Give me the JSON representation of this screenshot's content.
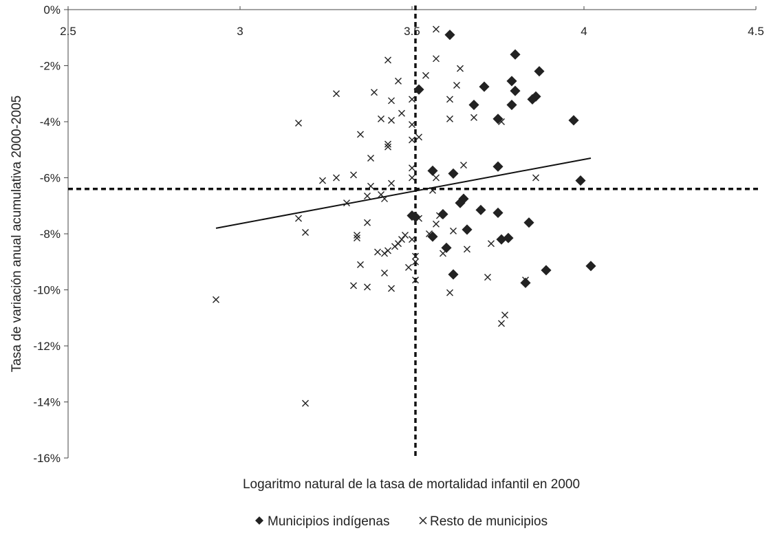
{
  "chart_data": {
    "type": "scatter",
    "title": "",
    "xlabel": "Logaritmo natural de la tasa de mortalidad infantil en 2000",
    "ylabel": "Tasa de variación anual acumulativa 2000-2005",
    "xlim": [
      2.5,
      4.5
    ],
    "ylim": [
      -16,
      0
    ],
    "x_ticks": [
      "2.5",
      "3",
      "3.5",
      "4",
      "4.5"
    ],
    "y_ticks": [
      "0%",
      "-2%",
      "-4%",
      "-6%",
      "-8%",
      "-10%",
      "-12%",
      "-14%",
      "-16%"
    ],
    "x_axis_at_top": true,
    "grid": false,
    "legend_position": "bottom",
    "reference_lines": {
      "x": 3.51,
      "y": -6.4,
      "style": "dashed"
    },
    "trendline": {
      "x": [
        2.93,
        4.02
      ],
      "y": [
        -7.8,
        -5.3
      ]
    },
    "series": [
      {
        "name": "Municipios indígenas",
        "marker": "diamond",
        "color": "#222222",
        "points": [
          [
            3.61,
            -0.9
          ],
          [
            3.8,
            -1.6
          ],
          [
            3.87,
            -2.2
          ],
          [
            3.79,
            -2.55
          ],
          [
            3.8,
            -2.9
          ],
          [
            3.71,
            -2.75
          ],
          [
            3.52,
            -2.85
          ],
          [
            3.86,
            -3.1
          ],
          [
            3.85,
            -3.2
          ],
          [
            3.68,
            -3.4
          ],
          [
            3.79,
            -3.4
          ],
          [
            3.75,
            -3.9
          ],
          [
            3.97,
            -3.95
          ],
          [
            3.56,
            -5.75
          ],
          [
            3.62,
            -5.85
          ],
          [
            3.75,
            -5.6
          ],
          [
            3.99,
            -6.1
          ],
          [
            3.65,
            -6.75
          ],
          [
            3.64,
            -6.9
          ],
          [
            3.7,
            -7.15
          ],
          [
            3.75,
            -7.25
          ],
          [
            3.59,
            -7.3
          ],
          [
            3.5,
            -7.35
          ],
          [
            3.51,
            -7.4
          ],
          [
            3.84,
            -7.6
          ],
          [
            3.66,
            -7.85
          ],
          [
            3.76,
            -8.2
          ],
          [
            3.56,
            -8.1
          ],
          [
            3.78,
            -8.15
          ],
          [
            3.6,
            -8.5
          ],
          [
            4.02,
            -9.15
          ],
          [
            3.89,
            -9.3
          ],
          [
            3.62,
            -9.45
          ],
          [
            3.83,
            -9.75
          ]
        ]
      },
      {
        "name": "Resto de municipios",
        "marker": "cross",
        "color": "#222222",
        "points": [
          [
            3.57,
            -0.7
          ],
          [
            3.57,
            -1.75
          ],
          [
            3.43,
            -1.8
          ],
          [
            3.54,
            -2.35
          ],
          [
            3.64,
            -2.1
          ],
          [
            3.63,
            -2.7
          ],
          [
            3.46,
            -2.55
          ],
          [
            3.28,
            -3.0
          ],
          [
            3.39,
            -2.95
          ],
          [
            3.5,
            -3.2
          ],
          [
            3.61,
            -3.2
          ],
          [
            3.44,
            -3.25
          ],
          [
            3.17,
            -4.05
          ],
          [
            3.47,
            -3.7
          ],
          [
            3.44,
            -3.95
          ],
          [
            3.41,
            -3.9
          ],
          [
            3.5,
            -4.1
          ],
          [
            3.61,
            -3.9
          ],
          [
            3.68,
            -3.85
          ],
          [
            3.76,
            -4.0
          ],
          [
            3.35,
            -4.45
          ],
          [
            3.52,
            -4.55
          ],
          [
            3.5,
            -4.65
          ],
          [
            3.43,
            -4.8
          ],
          [
            3.43,
            -4.9
          ],
          [
            3.38,
            -5.3
          ],
          [
            3.65,
            -5.55
          ],
          [
            3.5,
            -5.65
          ],
          [
            3.24,
            -6.1
          ],
          [
            3.28,
            -6.0
          ],
          [
            3.33,
            -5.9
          ],
          [
            3.44,
            -6.2
          ],
          [
            3.5,
            -6.0
          ],
          [
            3.57,
            -6.0
          ],
          [
            3.86,
            -6.0
          ],
          [
            3.38,
            -6.3
          ],
          [
            3.56,
            -6.45
          ],
          [
            3.41,
            -6.6
          ],
          [
            3.37,
            -6.65
          ],
          [
            3.42,
            -6.75
          ],
          [
            3.31,
            -6.9
          ],
          [
            3.17,
            -7.45
          ],
          [
            3.58,
            -7.35
          ],
          [
            3.52,
            -7.45
          ],
          [
            3.57,
            -7.65
          ],
          [
            3.37,
            -7.6
          ],
          [
            3.19,
            -7.95
          ],
          [
            3.34,
            -8.05
          ],
          [
            3.34,
            -8.15
          ],
          [
            3.5,
            -8.2
          ],
          [
            3.48,
            -8.05
          ],
          [
            3.47,
            -8.2
          ],
          [
            3.62,
            -7.9
          ],
          [
            3.55,
            -8.0
          ],
          [
            3.46,
            -8.35
          ],
          [
            3.45,
            -8.45
          ],
          [
            3.43,
            -8.6
          ],
          [
            3.42,
            -8.7
          ],
          [
            3.4,
            -8.65
          ],
          [
            3.51,
            -8.8
          ],
          [
            3.59,
            -8.7
          ],
          [
            3.66,
            -8.55
          ],
          [
            3.73,
            -8.35
          ],
          [
            3.35,
            -9.1
          ],
          [
            3.49,
            -9.2
          ],
          [
            3.51,
            -9.0
          ],
          [
            3.42,
            -9.4
          ],
          [
            3.72,
            -9.55
          ],
          [
            3.83,
            -9.65
          ],
          [
            3.33,
            -9.85
          ],
          [
            3.37,
            -9.9
          ],
          [
            3.44,
            -9.95
          ],
          [
            3.51,
            -9.65
          ],
          [
            3.61,
            -10.1
          ],
          [
            3.77,
            -10.9
          ],
          [
            3.76,
            -11.2
          ],
          [
            2.93,
            -10.35
          ],
          [
            3.19,
            -14.05
          ]
        ]
      }
    ]
  }
}
